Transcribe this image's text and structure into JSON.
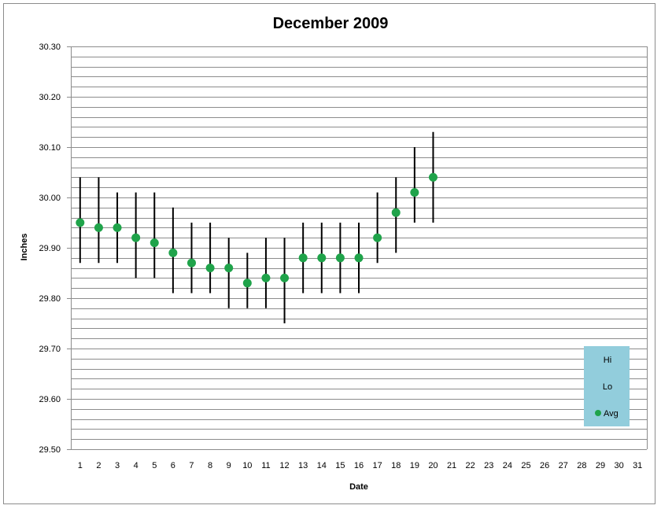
{
  "chart_data": {
    "type": "scatter",
    "title": "December 2009",
    "xlabel": "Date",
    "ylabel": "Inches",
    "x_categories": [
      1,
      2,
      3,
      4,
      5,
      6,
      7,
      8,
      9,
      10,
      11,
      12,
      13,
      14,
      15,
      16,
      17,
      18,
      19,
      20,
      21,
      22,
      23,
      24,
      25,
      26,
      27,
      28,
      29,
      30,
      31
    ],
    "ylim": [
      29.5,
      30.3
    ],
    "y_ticks": [
      "29.50",
      "29.60",
      "29.70",
      "29.80",
      "29.90",
      "30.00",
      "30.10",
      "30.20",
      "30.30"
    ],
    "grid": true,
    "legend_position": "bottom-right",
    "legend": [
      "Hi",
      "Lo",
      "Avg"
    ],
    "colors": {
      "avg": "#1fa34a",
      "range": "#000000",
      "legend_bg": "#92cddc",
      "grid": "#8c8c8c"
    },
    "series": [
      {
        "name": "Hi",
        "x": [
          1,
          2,
          3,
          4,
          5,
          6,
          7,
          8,
          9,
          10,
          11,
          12,
          13,
          14,
          15,
          16,
          17,
          18,
          19,
          20
        ],
        "values": [
          30.04,
          30.04,
          30.01,
          30.01,
          30.01,
          29.98,
          29.95,
          29.95,
          29.92,
          29.89,
          29.92,
          29.92,
          29.95,
          29.95,
          29.95,
          29.95,
          30.01,
          30.04,
          30.1,
          30.13
        ]
      },
      {
        "name": "Lo",
        "x": [
          1,
          2,
          3,
          4,
          5,
          6,
          7,
          8,
          9,
          10,
          11,
          12,
          13,
          14,
          15,
          16,
          17,
          18,
          19,
          20
        ],
        "values": [
          29.87,
          29.87,
          29.87,
          29.84,
          29.84,
          29.81,
          29.81,
          29.81,
          29.78,
          29.78,
          29.78,
          29.75,
          29.81,
          29.81,
          29.81,
          29.81,
          29.87,
          29.89,
          29.95,
          29.95
        ]
      },
      {
        "name": "Avg",
        "x": [
          1,
          2,
          3,
          4,
          5,
          6,
          7,
          8,
          9,
          10,
          11,
          12,
          13,
          14,
          15,
          16,
          17,
          18,
          19,
          20
        ],
        "values": [
          29.95,
          29.94,
          29.94,
          29.92,
          29.91,
          29.89,
          29.87,
          29.86,
          29.86,
          29.83,
          29.84,
          29.84,
          29.88,
          29.88,
          29.88,
          29.88,
          29.92,
          29.97,
          30.01,
          30.04
        ]
      }
    ]
  }
}
